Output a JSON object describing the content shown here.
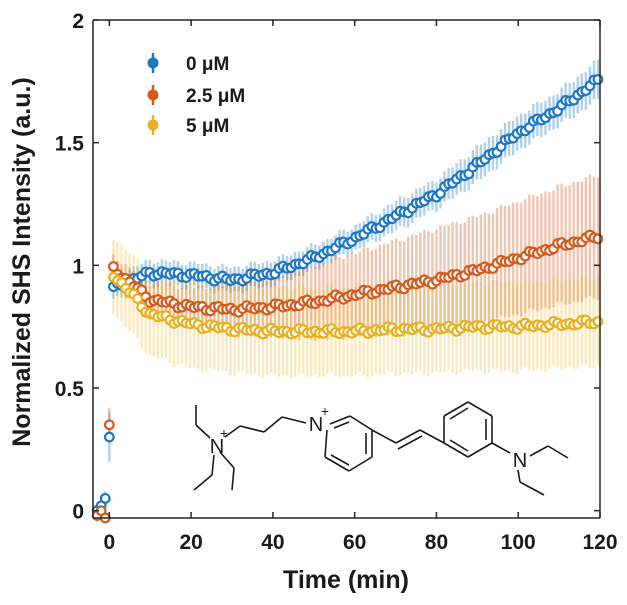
{
  "chart_data": {
    "type": "scatter",
    "xlabel": "Time (min)",
    "ylabel": "Normalized SHS Intensity (a.u.)",
    "xlim": [
      -4,
      120
    ],
    "ylim": [
      -0.03,
      2.0
    ],
    "xticks": [
      0,
      20,
      40,
      60,
      80,
      100,
      120
    ],
    "yticks": [
      0,
      0.5,
      1,
      1.5,
      2
    ],
    "xtick_labels": [
      "0",
      "20",
      "40",
      "60",
      "80",
      "100",
      "120"
    ],
    "ytick_labels": [
      "0",
      "0.5",
      "1",
      "1.5",
      "2"
    ],
    "legend_position": "top-left",
    "error_bars": true,
    "series": [
      {
        "name": "0 μM",
        "color": "#1f77c4",
        "pre_x": [
          -3,
          -2,
          -1,
          0
        ],
        "pre_y": [
          0.0,
          0.02,
          0.05,
          0.3
        ],
        "pre_err": [
          0.02,
          0.03,
          0.03,
          0.1
        ],
        "x": [
          0,
          10,
          20,
          30,
          40,
          50,
          60,
          70,
          80,
          90,
          100,
          110,
          120
        ],
        "y": [
          0.9,
          0.97,
          0.96,
          0.94,
          0.97,
          1.03,
          1.11,
          1.2,
          1.29,
          1.41,
          1.54,
          1.64,
          1.76
        ],
        "err": [
          0.05,
          0.05,
          0.05,
          0.05,
          0.05,
          0.05,
          0.05,
          0.06,
          0.06,
          0.07,
          0.07,
          0.07,
          0.08
        ]
      },
      {
        "name": "2.5 μM",
        "color": "#d45a1e",
        "pre_x": [
          -3,
          -2,
          -1,
          0
        ],
        "pre_y": [
          -0.02,
          0.0,
          -0.03,
          0.35
        ],
        "pre_err": [
          0.02,
          0.02,
          0.02,
          0.07
        ],
        "x": [
          0,
          10,
          20,
          30,
          40,
          50,
          60,
          70,
          80,
          90,
          100,
          110,
          120
        ],
        "y": [
          1.0,
          0.86,
          0.83,
          0.82,
          0.83,
          0.85,
          0.88,
          0.91,
          0.94,
          0.98,
          1.03,
          1.08,
          1.12
        ],
        "err": [
          0.05,
          0.07,
          0.08,
          0.1,
          0.12,
          0.15,
          0.17,
          0.19,
          0.21,
          0.22,
          0.23,
          0.24,
          0.25
        ]
      },
      {
        "name": "5 μM",
        "color": "#e8b020",
        "pre_x": [],
        "pre_y": [],
        "pre_err": [],
        "x": [
          0,
          10,
          20,
          30,
          40,
          50,
          60,
          70,
          80,
          90,
          100,
          110,
          120
        ],
        "y": [
          0.98,
          0.8,
          0.76,
          0.74,
          0.73,
          0.73,
          0.73,
          0.74,
          0.74,
          0.75,
          0.75,
          0.76,
          0.77
        ],
        "err": [
          0.15,
          0.17,
          0.18,
          0.18,
          0.18,
          0.18,
          0.18,
          0.18,
          0.18,
          0.18,
          0.18,
          0.18,
          0.18
        ]
      }
    ],
    "legend": [
      {
        "label": "0 μM",
        "color": "#1f77c4"
      },
      {
        "label": "2.5 μM",
        "color": "#d45a1e"
      },
      {
        "label": "5 μM",
        "color": "#e8b020"
      }
    ],
    "annotations": [
      "N",
      "N",
      "N",
      "+",
      "+"
    ]
  }
}
